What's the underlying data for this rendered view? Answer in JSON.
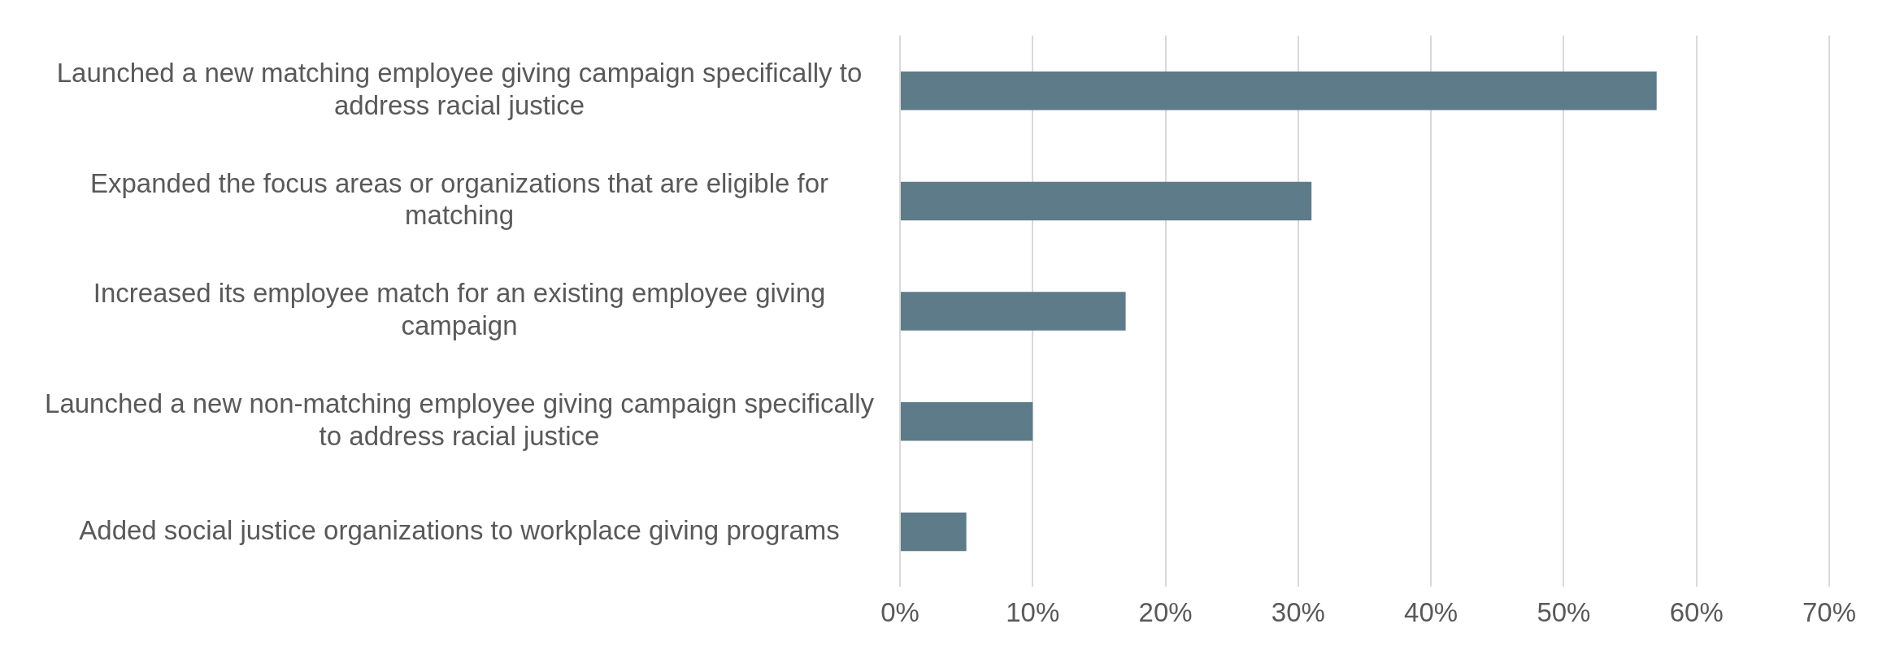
{
  "chart_data": {
    "type": "bar",
    "orientation": "horizontal",
    "categories": [
      "Launched a new matching employee giving campaign specifically to address racial justice",
      "Expanded the focus areas or organizations that are eligible for matching",
      "Increased its employee match for an existing employee giving campaign",
      "Launched a new non-matching employee giving campaign specifically to address racial justice",
      "Added social justice organizations to workplace giving programs"
    ],
    "values": [
      57,
      31,
      17,
      10,
      5
    ],
    "color": "#5e7b89",
    "xlim": [
      0,
      70
    ],
    "xticks": [
      {
        "value": 0,
        "label": "0%"
      },
      {
        "value": 10,
        "label": "10%"
      },
      {
        "value": 20,
        "label": "20%"
      },
      {
        "value": 30,
        "label": "30%"
      },
      {
        "value": 40,
        "label": "40%"
      },
      {
        "value": 50,
        "label": "50%"
      },
      {
        "value": 60,
        "label": "60%"
      },
      {
        "value": 70,
        "label": "70%"
      }
    ],
    "grid": "x",
    "legend": false
  }
}
